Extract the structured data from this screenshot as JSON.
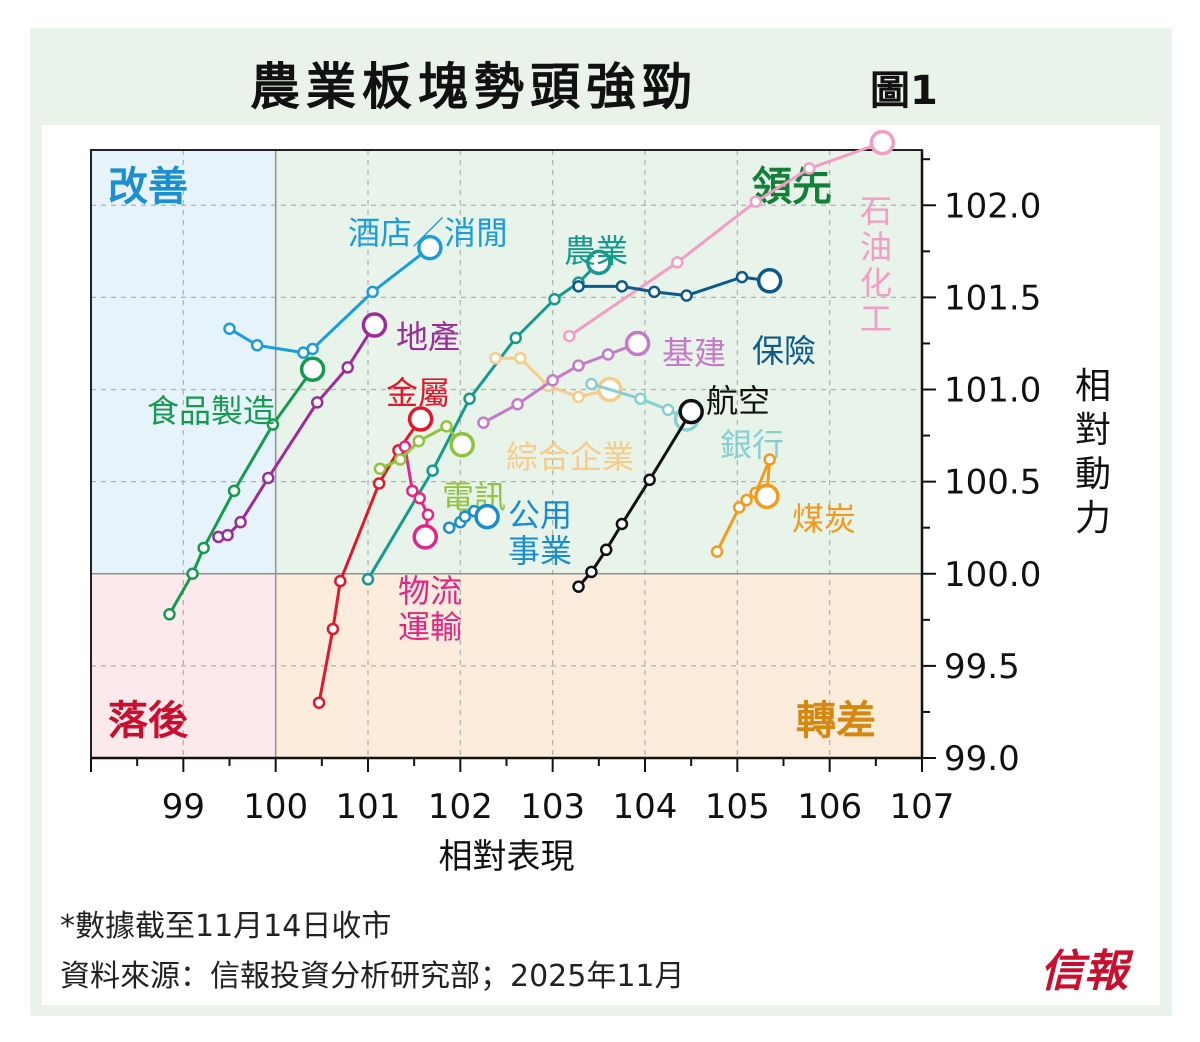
{
  "title": "農業板塊勢頭強勁",
  "figure_label": "圖1",
  "quadrants": {
    "improving": {
      "label": "改善",
      "color": "#1c8fd0"
    },
    "leading": {
      "label": "領先",
      "color": "#13803a"
    },
    "lagging": {
      "label": "落後",
      "color": "#c8102e"
    },
    "weakening": {
      "label": "轉差",
      "color": "#d5880f"
    }
  },
  "footnote": "*數據截至11月14日收市",
  "source": "資料來源：信報投資分析研究部；2025年11月",
  "brand": "信報",
  "chart_data": {
    "type": "scatter",
    "xlabel": "相對表現",
    "ylabel": "相對動力",
    "xlim": [
      98.0,
      107.0
    ],
    "ylim": [
      99.0,
      102.3
    ],
    "xticks": [
      99,
      100,
      101,
      102,
      103,
      104,
      105,
      106,
      107
    ],
    "yticks": [
      99.0,
      99.5,
      100.0,
      100.5,
      101.0,
      101.5,
      102.0
    ],
    "ytick_labels": [
      "99.0",
      "99.5",
      "100.0",
      "100.5",
      "101.0",
      "101.5",
      "102.0"
    ],
    "grid": true,
    "y_axis_side": "right",
    "series": [
      {
        "name": "石油化工",
        "color": "#f39cc4",
        "x": [
          103.18,
          104.35,
          105.2,
          105.78
        ],
        "y": [
          101.29,
          101.69,
          102.02,
          102.2
        ],
        "end": [
          106.57,
          102.34
        ]
      },
      {
        "name": "酒店／消閒",
        "color": "#1a9ddd",
        "x": [
          99.5,
          99.8,
          100.3,
          100.4,
          101.05
        ],
        "y": [
          101.33,
          101.24,
          101.2,
          101.22,
          101.53
        ],
        "end": [
          101.67,
          101.77
        ]
      },
      {
        "name": "農業",
        "color": "#159a8c",
        "x": [
          101.0,
          101.7,
          102.1,
          102.6,
          103.02,
          103.28
        ],
        "y": [
          99.97,
          100.56,
          100.95,
          101.28,
          101.49,
          101.58
        ],
        "end": [
          103.5,
          101.69
        ]
      },
      {
        "name": "保險",
        "color": "#0d5a8a",
        "x": [
          103.28,
          103.75,
          104.1,
          104.45,
          105.05
        ],
        "y": [
          101.56,
          101.56,
          101.53,
          101.51,
          101.61
        ],
        "end": [
          105.35,
          101.59
        ]
      },
      {
        "name": "地產",
        "color": "#9b2d98",
        "x": [
          99.38,
          99.48,
          99.62,
          99.92,
          100.45,
          100.78
        ],
        "y": [
          100.2,
          100.21,
          100.28,
          100.52,
          100.93,
          101.12
        ],
        "end": [
          101.07,
          101.35
        ]
      },
      {
        "name": "食品製造",
        "color": "#169a4f",
        "x": [
          98.85,
          99.1,
          99.22,
          99.55,
          99.97
        ],
        "y": [
          99.78,
          100.0,
          100.14,
          100.45,
          100.81
        ],
        "end": [
          100.4,
          101.11
        ]
      },
      {
        "name": "金屬",
        "color": "#e3172b",
        "x": [
          100.47,
          100.62,
          100.7,
          101.12,
          101.33
        ],
        "y": [
          99.3,
          99.7,
          99.96,
          100.49,
          100.67
        ],
        "end": [
          101.57,
          100.84
        ]
      },
      {
        "name": "物流運輸",
        "color": "#e32685",
        "x": [
          101.4,
          101.48,
          101.56,
          101.65
        ],
        "y": [
          100.69,
          100.45,
          100.41,
          100.32
        ],
        "end": [
          101.62,
          100.2
        ]
      },
      {
        "name": "電訊",
        "color": "#8fc33c",
        "x": [
          101.13,
          101.35,
          101.55,
          101.85
        ],
        "y": [
          100.57,
          100.62,
          100.72,
          100.8
        ],
        "end": [
          102.02,
          100.7
        ]
      },
      {
        "name": "公用事業",
        "color": "#1a8dcc",
        "x": [
          101.88,
          102.0,
          102.05,
          102.15
        ],
        "y": [
          100.25,
          100.28,
          100.31,
          100.34
        ],
        "end": [
          102.29,
          100.31
        ]
      },
      {
        "name": "綜合企業",
        "color": "#f6cc8a",
        "x": [
          102.38,
          102.65,
          102.95,
          103.28
        ],
        "y": [
          101.17,
          101.17,
          101.02,
          100.96
        ],
        "end": [
          103.62,
          101.0
        ]
      },
      {
        "name": "基建",
        "color": "#c37ac7",
        "x": [
          102.25,
          102.62,
          103.0,
          103.28,
          103.6
        ],
        "y": [
          100.82,
          100.92,
          101.05,
          101.13,
          101.19
        ],
        "end": [
          103.92,
          101.25
        ]
      },
      {
        "name": "銀行",
        "color": "#88cfd0",
        "x": [
          103.42,
          103.95,
          104.25
        ],
        "y": [
          101.03,
          100.95,
          100.89
        ],
        "end": [
          104.45,
          100.84
        ]
      },
      {
        "name": "航空",
        "color": "#111111",
        "x": [
          103.28,
          103.42,
          103.58,
          103.75,
          104.05
        ],
        "y": [
          99.93,
          100.01,
          100.13,
          100.27,
          100.51
        ],
        "end": [
          104.5,
          100.88
        ]
      },
      {
        "name": "煤炭",
        "color": "#f29a1a",
        "x": [
          104.78,
          105.02,
          105.1,
          105.2,
          105.35
        ],
        "y": [
          100.12,
          100.36,
          100.4,
          100.44,
          100.62
        ],
        "end": [
          105.32,
          100.42
        ]
      }
    ]
  }
}
